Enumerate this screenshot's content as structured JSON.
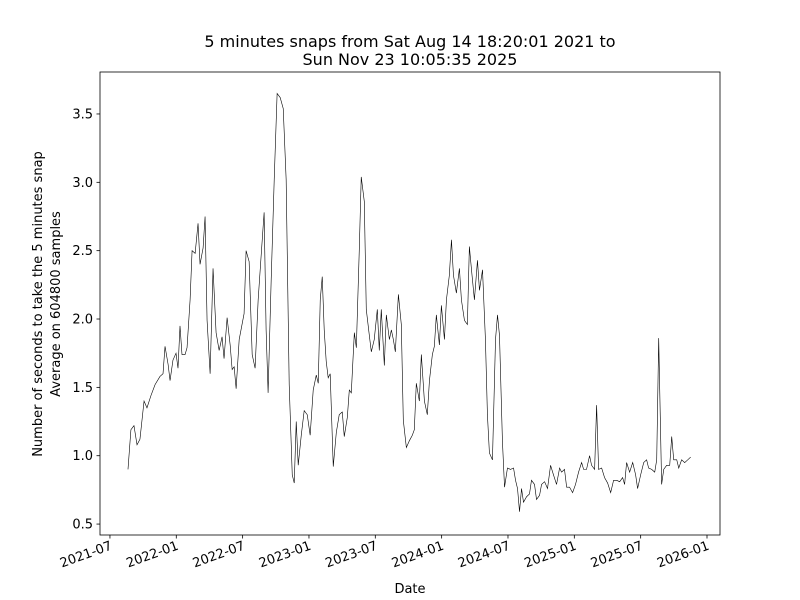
{
  "chart_data": {
    "type": "line",
    "title": [
      "5 minutes snaps from Sat Aug 14 18:20:01 2021 to",
      "Sun Nov 23 10:05:35 2025"
    ],
    "xlabel": "Date",
    "ylabel": [
      "Number of seconds to take the 5 minutes snap",
      "Average on 604800 samples"
    ],
    "color": "#000000",
    "xlim": [
      2021.425,
      2026.098
    ],
    "ylim": [
      0.42,
      3.807
    ],
    "xticks": [
      {
        "value": 2021.5,
        "label": "2021-07"
      },
      {
        "value": 2022.0,
        "label": "2022-01"
      },
      {
        "value": 2022.5,
        "label": "2022-07"
      },
      {
        "value": 2023.0,
        "label": "2023-01"
      },
      {
        "value": 2023.5,
        "label": "2023-07"
      },
      {
        "value": 2024.0,
        "label": "2024-01"
      },
      {
        "value": 2024.5,
        "label": "2024-07"
      },
      {
        "value": 2025.0,
        "label": "2025-01"
      },
      {
        "value": 2025.5,
        "label": "2025-07"
      },
      {
        "value": 2026.0,
        "label": "2026-01"
      }
    ],
    "yticks": [
      0.5,
      {
        "value": 1,
        "label": "1.0"
      },
      1.5,
      {
        "value": 2,
        "label": "2.0"
      },
      2.5,
      {
        "value": 3,
        "label": "3.0"
      },
      3.5
    ],
    "x": [
      2021.636,
      2021.658,
      2021.681,
      2021.704,
      2021.726,
      2021.757,
      2021.779,
      2021.809,
      2021.84,
      2021.877,
      2021.9,
      2021.915,
      2021.938,
      2021.953,
      2021.975,
      2021.998,
      2022.013,
      2022.028,
      2022.043,
      2022.066,
      2022.081,
      2022.104,
      2022.119,
      2022.142,
      2022.164,
      2022.179,
      2022.202,
      2022.217,
      2022.232,
      2022.255,
      2022.277,
      2022.3,
      2022.323,
      2022.345,
      2022.36,
      2022.383,
      2022.406,
      2022.421,
      2022.436,
      2022.451,
      2022.474,
      2022.511,
      2022.526,
      2022.549,
      2022.572,
      2022.594,
      2022.617,
      2022.64,
      2022.662,
      2022.677,
      2022.692,
      2022.715,
      2022.738,
      2022.76,
      2022.783,
      2022.806,
      2022.828,
      2022.851,
      2022.874,
      2022.889,
      2022.904,
      2022.919,
      2022.942,
      2022.964,
      2022.987,
      2023.009,
      2023.032,
      2023.055,
      2023.07,
      2023.085,
      2023.1,
      2023.115,
      2023.13,
      2023.145,
      2023.16,
      2023.183,
      2023.206,
      2023.228,
      2023.251,
      2023.266,
      2023.289,
      2023.304,
      2023.319,
      2023.342,
      2023.357,
      2023.379,
      2023.394,
      2023.417,
      2023.432,
      2023.455,
      2023.47,
      2023.492,
      2023.515,
      2023.53,
      2023.545,
      2023.568,
      2023.583,
      2023.606,
      2023.621,
      2023.636,
      2023.651,
      2023.674,
      2023.696,
      2023.711,
      2023.734,
      2023.757,
      2023.779,
      2023.794,
      2023.809,
      2023.832,
      2023.847,
      2023.87,
      2023.892,
      2023.908,
      2023.93,
      2023.945,
      2023.96,
      2023.983,
      2023.998,
      2024.021,
      2024.036,
      2024.058,
      2024.074,
      2024.089,
      2024.111,
      2024.134,
      2024.149,
      2024.172,
      2024.194,
      2024.209,
      2024.225,
      2024.247,
      2024.27,
      2024.285,
      2024.308,
      2024.33,
      2024.345,
      2024.36,
      2024.383,
      2024.406,
      2024.421,
      2024.436,
      2024.458,
      2024.474,
      2024.496,
      2024.519,
      2024.542,
      2024.557,
      2024.572,
      2024.587,
      2024.602,
      2024.617,
      2024.64,
      2024.662,
      2024.677,
      2024.7,
      2024.715,
      2024.738,
      2024.753,
      2024.776,
      2024.798,
      2024.821,
      2024.843,
      2024.866,
      2024.889,
      2024.904,
      2024.926,
      2024.942,
      2024.964,
      2024.987,
      2025.009,
      2025.032,
      2025.055,
      2025.07,
      2025.092,
      2025.115,
      2025.13,
      2025.153,
      2025.168,
      2025.183,
      2025.206,
      2025.228,
      2025.251,
      2025.274,
      2025.296,
      2025.319,
      2025.342,
      2025.364,
      2025.379,
      2025.394,
      2025.417,
      2025.44,
      2025.462,
      2025.477,
      2025.5,
      2025.523,
      2025.545,
      2025.56,
      2025.583,
      2025.606,
      2025.621,
      2025.636,
      2025.658,
      2025.674,
      2025.696,
      2025.719,
      2025.734,
      2025.749,
      2025.772,
      2025.787,
      2025.809,
      2025.832,
      2025.855,
      2025.877
    ],
    "values": [
      0.9,
      1.19,
      1.22,
      1.08,
      1.12,
      1.4,
      1.35,
      1.44,
      1.52,
      1.58,
      1.6,
      1.8,
      1.67,
      1.55,
      1.7,
      1.75,
      1.64,
      1.95,
      1.74,
      1.74,
      1.79,
      2.14,
      2.5,
      2.48,
      2.7,
      2.4,
      2.52,
      2.75,
      1.99,
      1.6,
      2.37,
      1.9,
      1.77,
      1.87,
      1.71,
      2.01,
      1.81,
      1.63,
      1.65,
      1.49,
      1.85,
      2.04,
      2.5,
      2.42,
      1.74,
      1.64,
      2.14,
      2.47,
      2.78,
      1.92,
      1.46,
      2.28,
      3.02,
      3.65,
      3.62,
      3.54,
      3.02,
      1.52,
      0.86,
      0.8,
      1.25,
      0.93,
      1.15,
      1.33,
      1.3,
      1.15,
      1.48,
      1.59,
      1.53,
      2.14,
      2.31,
      1.92,
      1.69,
      1.57,
      1.6,
      0.92,
      1.17,
      1.3,
      1.32,
      1.14,
      1.28,
      1.48,
      1.46,
      1.9,
      1.79,
      2.5,
      3.04,
      2.86,
      2.07,
      1.88,
      1.76,
      1.85,
      2.07,
      1.77,
      2.07,
      1.66,
      2.03,
      1.85,
      1.92,
      1.85,
      1.76,
      2.18,
      1.96,
      1.26,
      1.06,
      1.11,
      1.15,
      1.19,
      1.53,
      1.4,
      1.74,
      1.4,
      1.3,
      1.55,
      1.74,
      1.8,
      2.03,
      1.81,
      2.1,
      1.85,
      2.14,
      2.32,
      2.58,
      2.32,
      2.19,
      2.37,
      2.14,
      1.99,
      1.96,
      2.53,
      2.36,
      2.14,
      2.43,
      2.21,
      2.36,
      1.85,
      1.3,
      1.02,
      0.97,
      1.85,
      2.03,
      1.88,
      1.11,
      0.77,
      0.91,
      0.9,
      0.91,
      0.82,
      0.76,
      0.59,
      0.76,
      0.66,
      0.7,
      0.72,
      0.82,
      0.79,
      0.68,
      0.71,
      0.79,
      0.81,
      0.76,
      0.93,
      0.86,
      0.79,
      0.91,
      0.88,
      0.9,
      0.77,
      0.77,
      0.73,
      0.79,
      0.88,
      0.95,
      0.9,
      0.9,
      1.0,
      0.93,
      0.9,
      1.37,
      0.9,
      0.91,
      0.84,
      0.8,
      0.73,
      0.82,
      0.82,
      0.81,
      0.84,
      0.79,
      0.95,
      0.88,
      0.95,
      0.86,
      0.76,
      0.86,
      0.95,
      0.97,
      0.91,
      0.9,
      0.88,
      0.97,
      1.86,
      0.79,
      0.9,
      0.93,
      0.93,
      1.14,
      0.97,
      0.97,
      0.91,
      0.97,
      0.95,
      0.97,
      0.99
    ]
  }
}
